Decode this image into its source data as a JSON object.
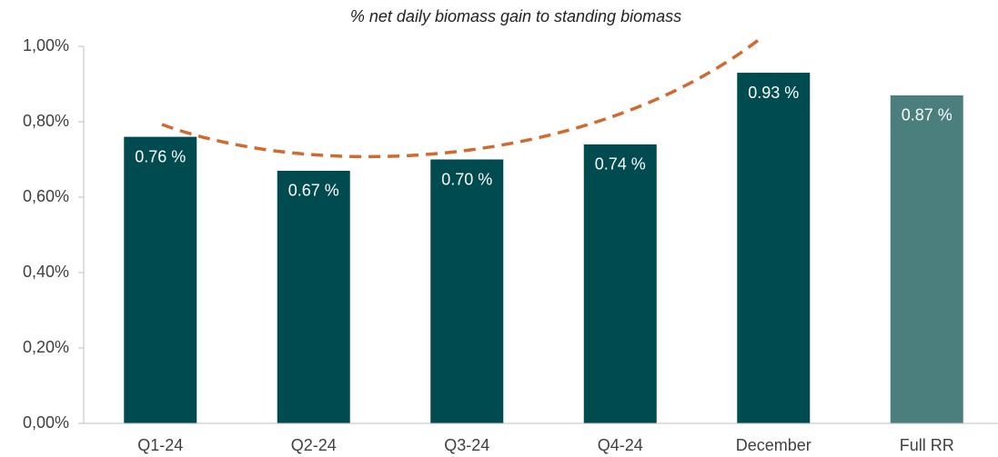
{
  "chart_data": {
    "type": "bar",
    "title": "% net daily biomass gain to standing biomass",
    "categories": [
      "Q1-24",
      "Q2-24",
      "Q3-24",
      "Q4-24",
      "December",
      "Full RR"
    ],
    "values": [
      0.76,
      0.67,
      0.7,
      0.74,
      0.93,
      0.87
    ],
    "value_labels": [
      "0.76 %",
      "0.67 %",
      "0.70 %",
      "0.74 %",
      "0.93 %",
      "0.87 %"
    ],
    "colors": [
      "#004b50",
      "#004b50",
      "#004b50",
      "#004b50",
      "#004b50",
      "#4a7f7e"
    ],
    "ylim": [
      0,
      1
    ],
    "yticks": [
      {
        "value": 0,
        "label": "0,00%"
      },
      {
        "value": 0.2,
        "label": "0,20%"
      },
      {
        "value": 0.4,
        "label": "0,40%"
      },
      {
        "value": 0.6,
        "label": "0,60%"
      },
      {
        "value": 0.8,
        "label": "0,80%"
      },
      {
        "value": 1,
        "label": "1,00%"
      }
    ],
    "grid": false
  }
}
